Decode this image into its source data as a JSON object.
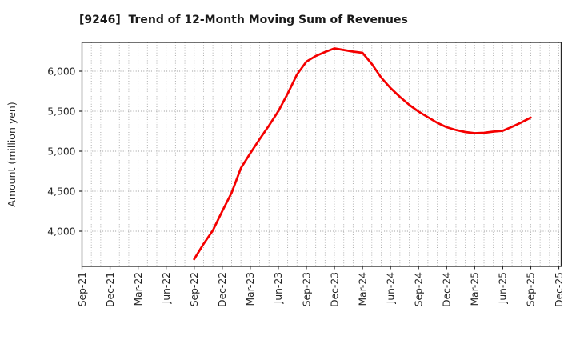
{
  "header": {
    "title": "[9246]  Trend of 12-Month Moving Sum of Revenues"
  },
  "chart_data": {
    "type": "line",
    "title": "[9246]  Trend of 12-Month Moving Sum of Revenues",
    "xlabel": "",
    "ylabel": "Amount (million yen)",
    "legend": "none",
    "grid": "dotted",
    "line_color": "#f40000",
    "grid_color": "#a6a6a6",
    "spine_color": "#262626",
    "ylim": [
      3560,
      6360
    ],
    "y_ticks": [
      4000,
      4500,
      5000,
      5500,
      6000
    ],
    "y_tick_labels": [
      "4,000",
      "4,500",
      "5,000",
      "5,500",
      "6,000"
    ],
    "x_months": [
      "Sep-21",
      "Oct-21",
      "Nov-21",
      "Dec-21",
      "Jan-22",
      "Feb-22",
      "Mar-22",
      "Apr-22",
      "May-22",
      "Jun-22",
      "Jul-22",
      "Aug-22",
      "Sep-22",
      "Oct-22",
      "Nov-22",
      "Dec-22",
      "Jan-23",
      "Feb-23",
      "Mar-23",
      "Apr-23",
      "May-23",
      "Jun-23",
      "Jul-23",
      "Aug-23",
      "Sep-23",
      "Oct-23",
      "Nov-23",
      "Dec-23",
      "Jan-24",
      "Feb-24",
      "Mar-24",
      "Apr-24",
      "May-24",
      "Jun-24",
      "Jul-24",
      "Aug-24",
      "Sep-24",
      "Oct-24",
      "Nov-24",
      "Dec-24",
      "Jan-25",
      "Feb-25",
      "Mar-25",
      "Apr-25",
      "May-25",
      "Jun-25",
      "Jul-25",
      "Aug-25",
      "Sep-25",
      "Oct-25",
      "Nov-25",
      "Dec-25"
    ],
    "x_tick_labels": [
      "Sep-21",
      "Dec-21",
      "Mar-22",
      "Jun-22",
      "Sep-22",
      "Dec-22",
      "Mar-23",
      "Jun-23",
      "Sep-23",
      "Dec-23",
      "Mar-24",
      "Jun-24",
      "Sep-24",
      "Dec-24",
      "Mar-25",
      "Jun-25",
      "Sep-25",
      "Dec-25"
    ],
    "series": [
      {
        "name": "12-Month Moving Sum of Revenues",
        "color": "#f40000",
        "x": [
          "Sep-22",
          "Oct-22",
          "Nov-22",
          "Dec-22",
          "Jan-23",
          "Feb-23",
          "Mar-23",
          "Apr-23",
          "May-23",
          "Jun-23",
          "Jul-23",
          "Aug-23",
          "Sep-23",
          "Oct-23",
          "Nov-23",
          "Dec-23",
          "Jan-24",
          "Feb-24",
          "Mar-24",
          "Apr-24",
          "May-24",
          "Jun-24",
          "Jul-24",
          "Aug-24",
          "Sep-24",
          "Oct-24",
          "Nov-24",
          "Dec-24",
          "Jan-25",
          "Feb-25",
          "Mar-25",
          "Apr-25",
          "May-25",
          "Jun-25",
          "Jul-25",
          "Aug-25",
          "Sep-25"
        ],
        "values": [
          3650,
          3840,
          4010,
          4250,
          4480,
          4790,
          4975,
          5150,
          5320,
          5500,
          5720,
          5960,
          6120,
          6190,
          6240,
          6285,
          6265,
          6245,
          6230,
          6090,
          5920,
          5790,
          5680,
          5580,
          5495,
          5425,
          5355,
          5300,
          5265,
          5240,
          5225,
          5230,
          5245,
          5255,
          5305,
          5360,
          5420
        ]
      }
    ]
  }
}
